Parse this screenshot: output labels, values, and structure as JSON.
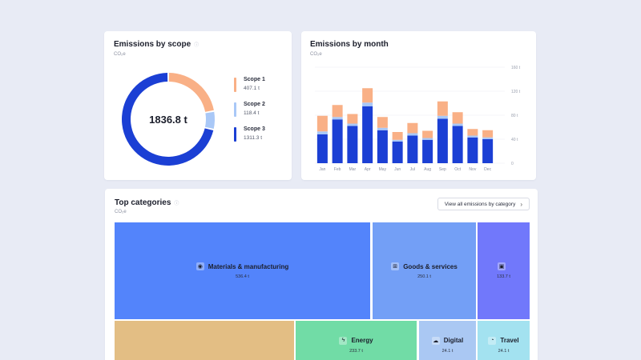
{
  "scope_card": {
    "title": "Emissions by scope",
    "subtitle": "CO₂e",
    "total": "1836.8 t",
    "scopes": [
      {
        "name": "Scope 1",
        "value": "407.1 t",
        "amount": 407.1,
        "color": "#f9b086"
      },
      {
        "name": "Scope 2",
        "value": "118.4 t",
        "amount": 118.4,
        "color": "#a9c8f7"
      },
      {
        "name": "Scope 3",
        "value": "1311.3 t",
        "amount": 1311.3,
        "color": "#1b3fd4"
      }
    ]
  },
  "month_card": {
    "title": "Emissions by month",
    "subtitle": "CO₂e"
  },
  "chart_data": {
    "type": "bar",
    "stacked": true,
    "categories": [
      "Jan",
      "Feb",
      "Mar",
      "Apr",
      "May",
      "Jun",
      "Jul",
      "Aug",
      "Sep",
      "Oct",
      "Nov",
      "Dec"
    ],
    "series": [
      {
        "name": "Scope 3",
        "color": "#1b3fd4",
        "values": [
          48,
          73,
          62,
          95,
          55,
          36,
          46,
          39,
          74,
          62,
          43,
          40
        ]
      },
      {
        "name": "Scope 2",
        "color": "#a9c8f7",
        "values": [
          5,
          4,
          4,
          6,
          4,
          3,
          4,
          3,
          5,
          4,
          3,
          3
        ]
      },
      {
        "name": "Scope 1",
        "color": "#f9b086",
        "values": [
          26,
          20,
          16,
          24,
          18,
          13,
          17,
          12,
          24,
          19,
          11,
          12
        ]
      }
    ],
    "y_ticks": [
      "0",
      "40 t",
      "80 t",
      "120 t",
      "160 t"
    ],
    "ylim": [
      0,
      160
    ],
    "grid": true
  },
  "categories_card": {
    "title": "Top categories",
    "subtitle": "CO₂e",
    "view_all": "View all emissions by category",
    "tiles": [
      {
        "label": "Materials & manufacturing",
        "value": "536.4 t",
        "icon": "cube-icon",
        "glyph": "◉",
        "color": "#5384fb"
      },
      {
        "label": "Goods & services",
        "value": "250.1 t",
        "icon": "cart-icon",
        "glyph": "⊞",
        "color": "#739ff6"
      },
      {
        "label": "",
        "value": "133.7 t",
        "icon": "box-icon",
        "glyph": "▣",
        "color": "#7178fb"
      },
      {
        "label": "",
        "value": "",
        "icon": "",
        "glyph": "",
        "color": "#e3be84"
      },
      {
        "label": "Energy",
        "value": "233.7 t",
        "icon": "bolt-icon",
        "glyph": "ϟ",
        "color": "#71dca6"
      },
      {
        "label": "Digital",
        "value": "24.1 t",
        "icon": "cloud-icon",
        "glyph": "☁",
        "color": "#aac8f3"
      },
      {
        "label": "Travel",
        "value": "24.1 t",
        "icon": "globe-icon",
        "glyph": "◔",
        "color": "#a3e2f0"
      }
    ]
  }
}
